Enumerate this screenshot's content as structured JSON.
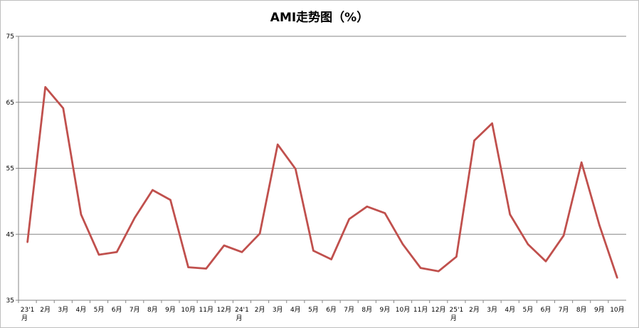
{
  "chart_data": {
    "type": "line",
    "title": "AMI走势图（%）",
    "xlabel": "",
    "ylabel": "",
    "ylim": [
      35,
      75
    ],
    "yticks": [
      35,
      45,
      55,
      65,
      75
    ],
    "grid": true,
    "legend": "none",
    "line_color": "#c0504d",
    "categories": [
      "23'1月",
      "2月",
      "3月",
      "4月",
      "5月",
      "6月",
      "7月",
      "8月",
      "9月",
      "10月",
      "11月",
      "12月",
      "24'1月",
      "2月",
      "3月",
      "4月",
      "5月",
      "6月",
      "7月",
      "8月",
      "9月",
      "10月",
      "11月",
      "12月",
      "25'1月",
      "2月",
      "3月",
      "4月",
      "5月",
      "6月",
      "7月",
      "8月",
      "9月",
      "10月"
    ],
    "series": [
      {
        "values": [
          43.8,
          67.3,
          64.1,
          48.0,
          41.9,
          42.3,
          47.5,
          51.7,
          50.2,
          40.0,
          39.8,
          43.3,
          42.3,
          45.1,
          58.6,
          54.9,
          42.5,
          41.2,
          47.3,
          49.2,
          48.2,
          43.5,
          39.9,
          39.4,
          41.6,
          59.2,
          61.8,
          48.0,
          43.5,
          40.9,
          44.8,
          55.9,
          46.4,
          38.4
        ]
      }
    ]
  }
}
